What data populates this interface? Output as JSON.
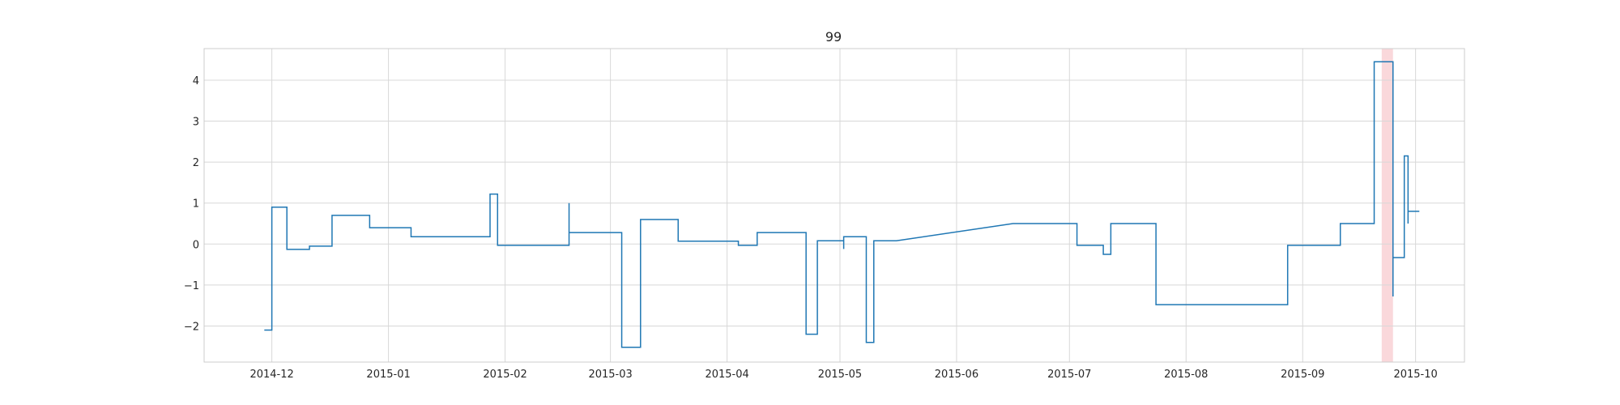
{
  "chart_data": {
    "type": "line",
    "title": "99",
    "xlabel": "",
    "ylabel": "",
    "x_axis": "date",
    "xlim": [
      "2014-11-13",
      "2015-10-14"
    ],
    "ylim": [
      -2.88,
      4.77
    ],
    "x_ticks": [
      "2014-12",
      "2015-01",
      "2015-02",
      "2015-03",
      "2015-04",
      "2015-05",
      "2015-06",
      "2015-07",
      "2015-08",
      "2015-09",
      "2015-10"
    ],
    "y_ticks": [
      -2,
      -1,
      0,
      1,
      2,
      3,
      4
    ],
    "y_tick_labels": [
      "−2",
      "−1",
      "0",
      "1",
      "2",
      "3",
      "4"
    ],
    "grid": true,
    "legend": "none",
    "colors": {
      "line": "#1f77b4",
      "highlight": "#f8c8cc",
      "grid": "#d8d8d8",
      "frame": "#cccccc"
    },
    "highlight_span": [
      "2015-09-22",
      "2015-09-25"
    ],
    "series": [
      {
        "step": "post",
        "points": [
          [
            "2014-11-29",
            -2.1
          ],
          [
            "2014-12-01",
            0.9
          ],
          [
            "2014-12-05",
            -0.13
          ],
          [
            "2014-12-11",
            -0.05
          ],
          [
            "2014-12-17",
            0.7
          ],
          [
            "2014-12-27",
            0.4
          ],
          [
            "2015-01-07",
            0.18
          ],
          [
            "2015-01-28",
            1.22
          ],
          [
            "2015-01-30",
            -0.03
          ],
          [
            "2015-02-18",
            1.0
          ],
          [
            "2015-02-18",
            0.28
          ],
          [
            "2015-03-04",
            -2.52
          ],
          [
            "2015-03-09",
            0.6
          ],
          [
            "2015-03-19",
            0.07
          ],
          [
            "2015-04-04",
            -0.03
          ],
          [
            "2015-04-09",
            0.28
          ],
          [
            "2015-04-22",
            -2.2
          ],
          [
            "2015-04-25",
            0.08
          ],
          [
            "2015-05-02",
            -0.12
          ],
          [
            "2015-05-02",
            0.18
          ],
          [
            "2015-05-08",
            -2.4
          ],
          [
            "2015-05-10",
            0.08
          ],
          [
            "2015-05-16",
            0.08,
            "line"
          ],
          [
            "2015-06-16",
            0.5
          ],
          [
            "2015-07-03",
            -0.03
          ],
          [
            "2015-07-10",
            -0.25
          ],
          [
            "2015-07-12",
            0.5
          ],
          [
            "2015-07-24",
            -1.48
          ],
          [
            "2015-08-28",
            -0.03
          ],
          [
            "2015-09-11",
            0.5
          ],
          [
            "2015-09-20",
            4.45
          ],
          [
            "2015-09-25",
            -1.28
          ],
          [
            "2015-09-25",
            -0.33
          ],
          [
            "2015-09-28",
            2.15
          ],
          [
            "2015-09-29",
            0.5
          ],
          [
            "2015-09-29",
            0.8
          ],
          [
            "2015-10-02",
            0.8
          ]
        ]
      }
    ]
  }
}
